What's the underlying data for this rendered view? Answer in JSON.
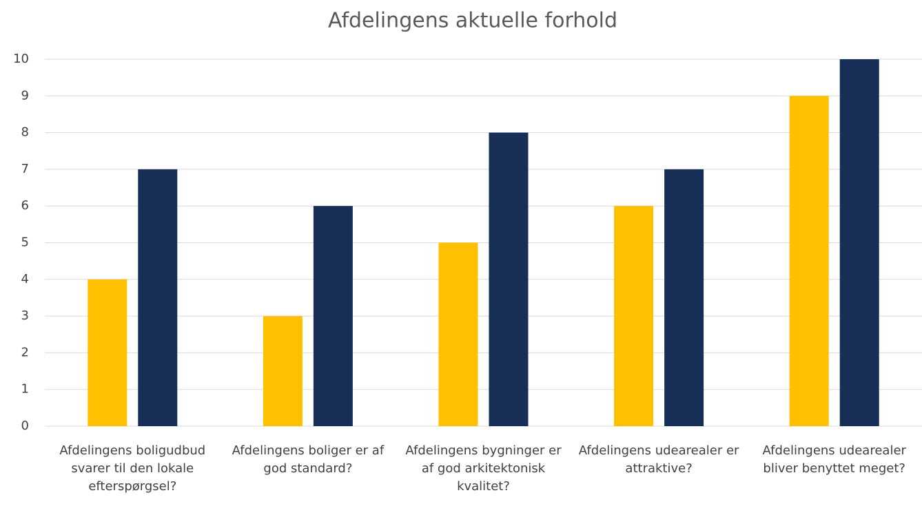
{
  "chart_data": {
    "type": "bar",
    "title": "Afdelingens aktuelle forhold",
    "categories": [
      "Afdelingens boligudbud svarer til den lokale efterspørgsel?",
      "Afdelingens boliger er af god standard?",
      "Afdelingens bygninger er af god arkitektonisk kvalitet?",
      "Afdelingens udearealer er attraktive?",
      "Afdelingens udearealer bliver benyttet meget?"
    ],
    "series": [
      {
        "color": "#ffc000",
        "values": [
          4,
          3,
          5,
          6,
          9
        ]
      },
      {
        "color": "#172e57",
        "values": [
          7,
          6,
          8,
          7,
          10
        ]
      }
    ],
    "ylim": [
      0,
      10
    ],
    "yticks": [
      0,
      1,
      2,
      3,
      4,
      5,
      6,
      7,
      8,
      9,
      10
    ],
    "grid": true
  }
}
